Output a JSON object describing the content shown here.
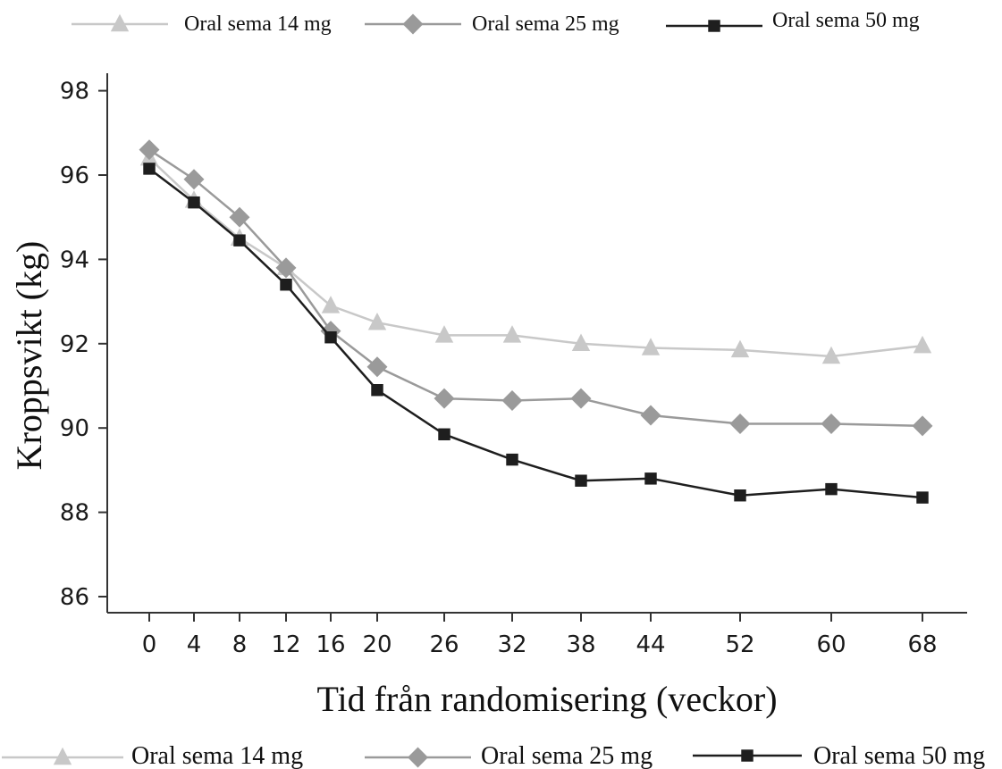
{
  "chart_data": {
    "type": "line",
    "xlabel": "Tid från randomisering (veckor)",
    "ylabel": "Kroppsvikt (kg)",
    "x": [
      0,
      4,
      8,
      12,
      16,
      20,
      26,
      32,
      38,
      44,
      52,
      60,
      68
    ],
    "x_tick_labels": [
      "0",
      "4",
      "8",
      "12",
      "16",
      "20",
      "26",
      "32",
      "38",
      "44",
      "52",
      "60",
      "68"
    ],
    "y_ticks": [
      86,
      88,
      90,
      92,
      94,
      96,
      98
    ],
    "ylim": [
      85.5,
      98.5
    ],
    "grid": false,
    "legend_placement": "top and bottom",
    "series": [
      {
        "name": "Oral sema 14 mg",
        "marker": "triangle",
        "color": "#c8c8c8",
        "values": [
          96.4,
          95.4,
          94.5,
          93.8,
          92.9,
          92.5,
          92.2,
          92.2,
          92.0,
          91.9,
          91.85,
          91.7,
          91.95
        ]
      },
      {
        "name": "Oral sema 25 mg",
        "marker": "diamond",
        "color": "#9a9a9a",
        "values": [
          96.6,
          95.9,
          95.0,
          93.8,
          92.3,
          91.45,
          90.7,
          90.65,
          90.7,
          90.3,
          90.1,
          90.1,
          90.05
        ]
      },
      {
        "name": "Oral sema 50 mg",
        "marker": "square",
        "color": "#1e1e1e",
        "values": [
          96.15,
          95.35,
          94.45,
          93.4,
          92.15,
          90.9,
          89.85,
          89.25,
          88.75,
          88.8,
          88.4,
          88.55,
          88.35
        ]
      }
    ]
  }
}
